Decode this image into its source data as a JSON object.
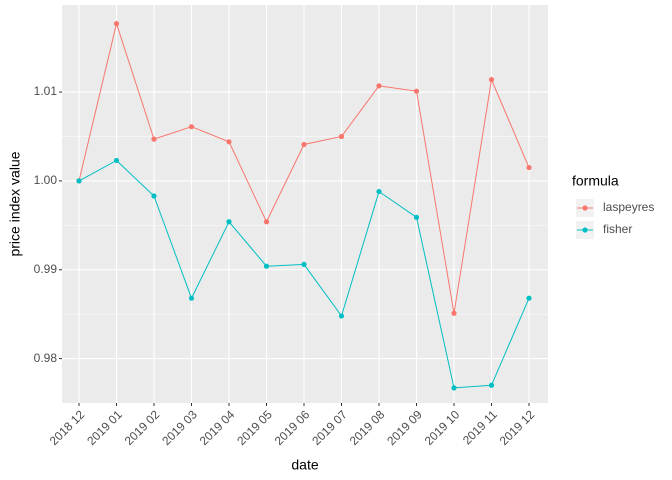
{
  "chart_data": {
    "type": "line",
    "x_label": "date",
    "y_label": "price index value",
    "categories": [
      "2018 12",
      "2019 01",
      "2019 02",
      "2019 03",
      "2019 04",
      "2019 05",
      "2019 06",
      "2019 07",
      "2019 08",
      "2019 09",
      "2019 10",
      "2019 11",
      "2019 12"
    ],
    "series": [
      {
        "name": "laspeyres",
        "color": "#F8766D",
        "values": [
          1.0,
          1.0177,
          1.0047,
          1.0061,
          1.0044,
          0.9954,
          1.0041,
          1.005,
          1.0107,
          1.0101,
          0.9851,
          1.0114,
          1.0015
        ]
      },
      {
        "name": "fisher",
        "color": "#00BFC4",
        "values": [
          1.0,
          1.0023,
          0.9983,
          0.9868,
          0.9954,
          0.9904,
          0.9906,
          0.9848,
          0.9988,
          0.9959,
          0.9767,
          0.977,
          0.9868
        ]
      }
    ],
    "legend_title": "formula",
    "ylim": [
      0.975,
      1.0198
    ],
    "yticks": [
      {
        "value": 0.98,
        "label": "0.98"
      },
      {
        "value": 0.99,
        "label": "0.99"
      },
      {
        "value": 1.0,
        "label": "1.00"
      },
      {
        "value": 1.01,
        "label": "1.01"
      }
    ],
    "grid": true,
    "legend_position": "right"
  }
}
